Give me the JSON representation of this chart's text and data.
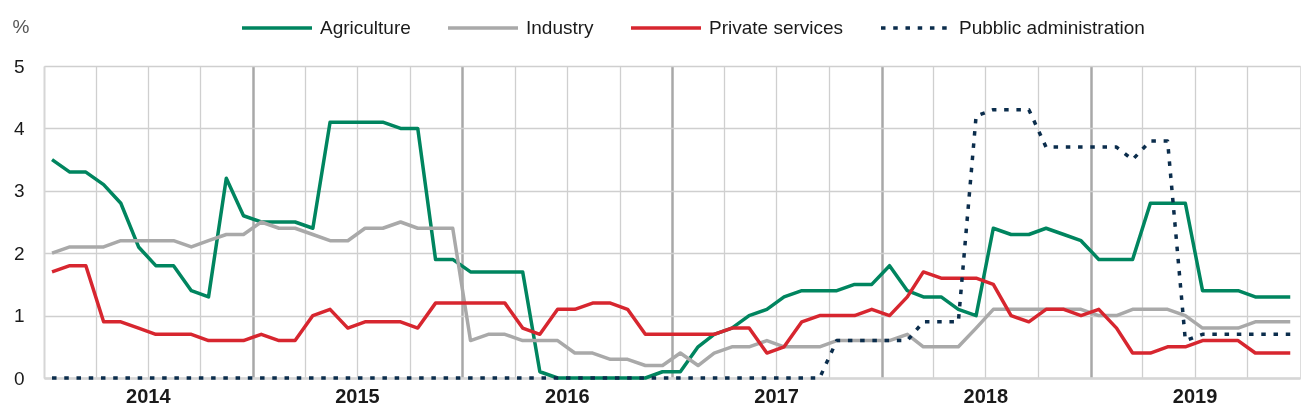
{
  "chart_data": {
    "type": "line",
    "ylabel": "%",
    "x": [
      "2014-01-15",
      "2014-02-15",
      "2014-03-15",
      "2014-04-15",
      "2014-05-15",
      "2014-06-15",
      "2014-07-15",
      "2014-08-15",
      "2014-09-15",
      "2014-10-15",
      "2014-11-15",
      "2014-12-15",
      "2015-01-15",
      "2015-02-15",
      "2015-03-15",
      "2015-04-15",
      "2015-05-15",
      "2015-06-15",
      "2015-07-15",
      "2015-08-15",
      "2015-09-15",
      "2015-10-15",
      "2015-11-15",
      "2015-12-15",
      "2016-01-15",
      "2016-02-15",
      "2016-03-15",
      "2016-04-15",
      "2016-05-15",
      "2016-06-15",
      "2016-07-15",
      "2016-08-15",
      "2016-09-15",
      "2016-10-15",
      "2016-11-15",
      "2016-12-15",
      "2017-01-15",
      "2017-02-15",
      "2017-03-15",
      "2017-04-15",
      "2017-05-15",
      "2017-06-15",
      "2017-07-15",
      "2017-08-15",
      "2017-09-15",
      "2017-10-15",
      "2017-11-15",
      "2017-12-15",
      "2018-01-15",
      "2018-02-15",
      "2018-03-15",
      "2018-04-15",
      "2018-05-15",
      "2018-06-15",
      "2018-07-15",
      "2018-08-15",
      "2018-09-15",
      "2018-10-15",
      "2018-11-15",
      "2018-12-15",
      "2019-01-15",
      "2019-02-15",
      "2019-03-15",
      "2019-04-15",
      "2019-05-15",
      "2019-06-15",
      "2019-07-15",
      "2019-08-15",
      "2019-09-15",
      "2019-10-15",
      "2019-11-15",
      "2019-12-15"
    ],
    "series": [
      {
        "name": "Agriculture",
        "color": "#00855f",
        "line_style": "solid",
        "values": [
          3.5,
          3.3,
          3.3,
          3.1,
          2.8,
          2.1,
          1.8,
          1.8,
          1.4,
          1.3,
          3.2,
          2.6,
          2.5,
          2.5,
          2.5,
          2.4,
          4.1,
          4.1,
          4.1,
          4.1,
          4.0,
          4.0,
          1.9,
          1.9,
          1.7,
          1.7,
          1.7,
          1.7,
          0.1,
          0.0,
          0.0,
          0.0,
          0.0,
          0.0,
          0.0,
          0.1,
          0.1,
          0.5,
          0.7,
          0.8,
          1.0,
          1.1,
          1.3,
          1.4,
          1.4,
          1.4,
          1.5,
          1.5,
          1.8,
          1.4,
          1.3,
          1.3,
          1.1,
          1.0,
          2.4,
          2.3,
          2.3,
          2.4,
          2.3,
          2.2,
          1.9,
          1.9,
          1.9,
          2.8,
          2.8,
          2.8,
          1.4,
          1.4,
          1.4,
          1.3,
          1.3,
          1.3
        ]
      },
      {
        "name": "Industry",
        "color": "#a9a9a9",
        "line_style": "solid",
        "values": [
          2.0,
          2.1,
          2.1,
          2.1,
          2.2,
          2.2,
          2.2,
          2.2,
          2.1,
          2.2,
          2.3,
          2.3,
          2.5,
          2.4,
          2.4,
          2.3,
          2.2,
          2.2,
          2.4,
          2.4,
          2.5,
          2.4,
          2.4,
          2.4,
          0.6,
          0.7,
          0.7,
          0.6,
          0.6,
          0.6,
          0.4,
          0.4,
          0.3,
          0.3,
          0.2,
          0.2,
          0.4,
          0.2,
          0.4,
          0.5,
          0.5,
          0.6,
          0.5,
          0.5,
          0.5,
          0.6,
          0.6,
          0.6,
          0.6,
          0.7,
          0.5,
          0.5,
          0.5,
          0.8,
          1.1,
          1.1,
          1.1,
          1.1,
          1.1,
          1.1,
          1.0,
          1.0,
          1.1,
          1.1,
          1.1,
          1.0,
          0.8,
          0.8,
          0.8,
          0.9,
          0.9,
          0.9
        ]
      },
      {
        "name": "Private services",
        "color": "#d7262f",
        "line_style": "solid",
        "values": [
          1.7,
          1.8,
          1.8,
          0.9,
          0.9,
          0.8,
          0.7,
          0.7,
          0.7,
          0.6,
          0.6,
          0.6,
          0.7,
          0.6,
          0.6,
          1.0,
          1.1,
          0.8,
          0.9,
          0.9,
          0.9,
          0.8,
          1.2,
          1.2,
          1.2,
          1.2,
          1.2,
          0.8,
          0.7,
          1.1,
          1.1,
          1.2,
          1.2,
          1.1,
          0.7,
          0.7,
          0.7,
          0.7,
          0.7,
          0.8,
          0.8,
          0.4,
          0.5,
          0.9,
          1.0,
          1.0,
          1.0,
          1.1,
          1.0,
          1.3,
          1.7,
          1.6,
          1.6,
          1.6,
          1.5,
          1.0,
          0.9,
          1.1,
          1.1,
          1.0,
          1.1,
          0.8,
          0.4,
          0.4,
          0.5,
          0.5,
          0.6,
          0.6,
          0.6,
          0.4,
          0.4,
          0.4
        ]
      },
      {
        "name": "Pubblic administration",
        "color": "#0b2d4c",
        "line_style": "dotted",
        "values": [
          0,
          0,
          0,
          0,
          0,
          0,
          0,
          0,
          0,
          0,
          0,
          0,
          0,
          0,
          0,
          0,
          0,
          0,
          0,
          0,
          0,
          0,
          0,
          0,
          0,
          0,
          0,
          0,
          0,
          0,
          0,
          0,
          0,
          0,
          0,
          0,
          0,
          0,
          0,
          0,
          0,
          0,
          0,
          0,
          0,
          0.6,
          0.6,
          0.6,
          0.6,
          0.6,
          0.9,
          0.9,
          0.9,
          4.2,
          4.3,
          4.3,
          4.3,
          3.7,
          3.7,
          3.7,
          3.7,
          3.7,
          3.5,
          3.8,
          3.8,
          0.6,
          0.7,
          0.7,
          0.7,
          0.7,
          0.7,
          0.7
        ]
      }
    ],
    "xlim": [
      "2014-01-01",
      "2020-01-01"
    ],
    "xticks": [
      {
        "value": "2014-04-01",
        "label": null
      },
      {
        "value": "2014-07-01",
        "label": "2014"
      },
      {
        "value": "2014-10-01",
        "label": null
      },
      {
        "value": "2015-01-01",
        "label": null
      },
      {
        "value": "2015-04-01",
        "label": null
      },
      {
        "value": "2015-07-01",
        "label": "2015"
      },
      {
        "value": "2015-10-01",
        "label": null
      },
      {
        "value": "2016-01-01",
        "label": null
      },
      {
        "value": "2016-04-01",
        "label": null
      },
      {
        "value": "2016-07-01",
        "label": "2016"
      },
      {
        "value": "2016-10-01",
        "label": null
      },
      {
        "value": "2017-01-01",
        "label": null
      },
      {
        "value": "2017-04-01",
        "label": null
      },
      {
        "value": "2017-07-01",
        "label": "2017"
      },
      {
        "value": "2017-10-01",
        "label": null
      },
      {
        "value": "2018-01-01",
        "label": null
      },
      {
        "value": "2018-04-01",
        "label": null
      },
      {
        "value": "2018-07-01",
        "label": "2018"
      },
      {
        "value": "2018-10-01",
        "label": null
      },
      {
        "value": "2019-01-01",
        "label": null
      },
      {
        "value": "2019-04-01",
        "label": null
      },
      {
        "value": "2019-07-01",
        "label": "2019"
      },
      {
        "value": "2019-10-01",
        "label": null
      }
    ],
    "ylim": [
      0,
      5
    ],
    "yticks": [
      0,
      1,
      2,
      3,
      4,
      5
    ],
    "grid": true,
    "legend": "top"
  }
}
